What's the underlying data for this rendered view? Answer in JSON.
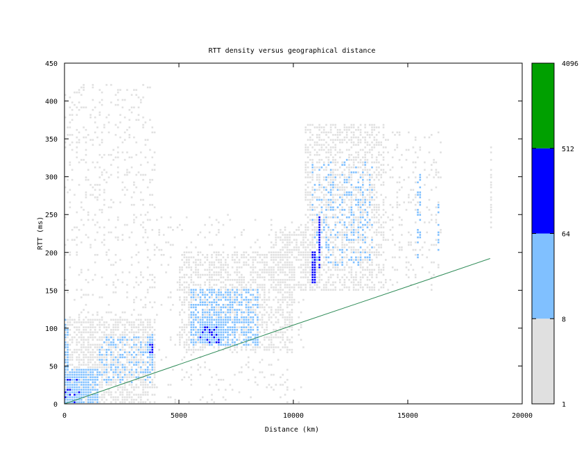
{
  "chart_data": {
    "type": "heatmap",
    "title": "RTT density versus geographical distance",
    "xlabel": "Distance (km)",
    "ylabel": "RTT (ms)",
    "xlim": [
      0,
      20000
    ],
    "ylim": [
      0,
      450
    ],
    "xticks": [
      "0",
      "5000",
      "10000",
      "15000",
      "20000"
    ],
    "yticks": [
      "0",
      "50",
      "100",
      "150",
      "200",
      "250",
      "300",
      "350",
      "400",
      "450"
    ],
    "grid": false,
    "colorbar": {
      "scale": "log",
      "ticks": [
        "1",
        "8",
        "64",
        "512",
        "4096"
      ],
      "bands": [
        {
          "from": 1,
          "to": 8,
          "color": "#e0e0e0"
        },
        {
          "from": 8,
          "to": 64,
          "color": "#80c0ff"
        },
        {
          "from": 64,
          "to": 512,
          "color": "#0000ff"
        },
        {
          "from": 512,
          "to": 4096,
          "color": "#00a000"
        }
      ]
    },
    "density_regions": [
      {
        "x": [
          0,
          4000
        ],
        "y": [
          0,
          420
        ],
        "level": 1,
        "density": 0.12
      },
      {
        "x": [
          0,
          4000
        ],
        "y": [
          0,
          110
        ],
        "level": 1,
        "density": 0.55
      },
      {
        "x": [
          0,
          1500
        ],
        "y": [
          0,
          45
        ],
        "level": 2,
        "density": 0.8
      },
      {
        "x": [
          1500,
          3900
        ],
        "y": [
          25,
          85
        ],
        "level": 2,
        "density": 0.3
      },
      {
        "x": [
          0,
          150
        ],
        "y": [
          0,
          110
        ],
        "level": 2,
        "density": 0.6
      },
      {
        "x": [
          0,
          700
        ],
        "y": [
          0,
          35
        ],
        "level": 3,
        "density": 0.2
      },
      {
        "x": [
          3600,
          3900
        ],
        "y": [
          40,
          90
        ],
        "level": 2,
        "density": 0.6
      },
      {
        "x": [
          3700,
          3850
        ],
        "y": [
          65,
          75
        ],
        "level": 3,
        "density": 0.8
      },
      {
        "x": [
          4000,
          10500
        ],
        "y": [
          0,
          250
        ],
        "level": 1,
        "density": 0.06
      },
      {
        "x": [
          5000,
          10000
        ],
        "y": [
          70,
          200
        ],
        "level": 1,
        "density": 0.45
      },
      {
        "x": [
          5500,
          8500
        ],
        "y": [
          75,
          150
        ],
        "level": 2,
        "density": 0.55
      },
      {
        "x": [
          5900,
          7000
        ],
        "y": [
          78,
          110
        ],
        "level": 2,
        "density": 0.85
      },
      {
        "x": [
          5900,
          6900
        ],
        "y": [
          80,
          102
        ],
        "level": 3,
        "density": 0.25
      },
      {
        "x": [
          9000,
          11000
        ],
        "y": [
          150,
          230
        ],
        "level": 1,
        "density": 0.5
      },
      {
        "x": [
          10500,
          14000
        ],
        "y": [
          150,
          370
        ],
        "level": 1,
        "density": 0.45
      },
      {
        "x": [
          10800,
          13500
        ],
        "y": [
          180,
          320
        ],
        "level": 2,
        "density": 0.2
      },
      {
        "x": [
          10800,
          11000
        ],
        "y": [
          160,
          200
        ],
        "level": 3,
        "density": 0.8
      },
      {
        "x": [
          11050,
          11150
        ],
        "y": [
          175,
          245
        ],
        "level": 3,
        "density": 0.9
      },
      {
        "x": [
          14000,
          16500
        ],
        "y": [
          150,
          360
        ],
        "level": 1,
        "density": 0.12
      },
      {
        "x": [
          15400,
          15600
        ],
        "y": [
          190,
          300
        ],
        "level": 2,
        "density": 0.4
      },
      {
        "x": [
          16250,
          16350
        ],
        "y": [
          200,
          270
        ],
        "level": 2,
        "density": 0.4
      },
      {
        "x": [
          18600,
          18700
        ],
        "y": [
          230,
          340
        ],
        "level": 1,
        "density": 0.5
      }
    ],
    "series": [
      {
        "type": "line",
        "color": "#2e8b57",
        "x": [
          0,
          5000,
          10000,
          15000,
          18600
        ],
        "y": [
          0,
          52,
          104,
          155,
          192
        ]
      }
    ]
  }
}
